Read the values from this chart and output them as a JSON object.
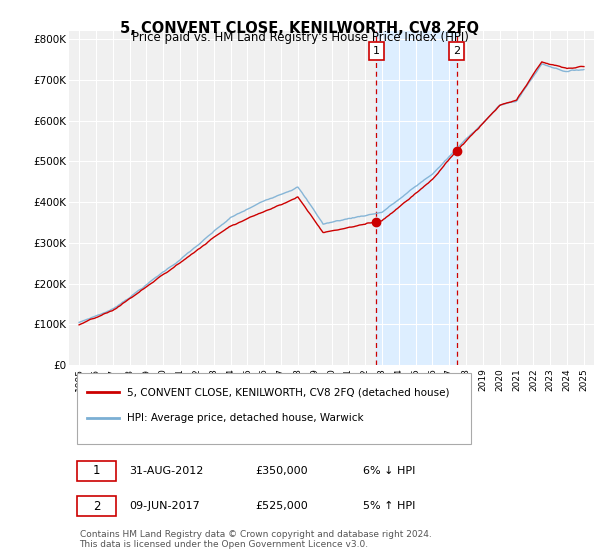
{
  "title": "5, CONVENT CLOSE, KENILWORTH, CV8 2FQ",
  "subtitle": "Price paid vs. HM Land Registry's House Price Index (HPI)",
  "legend_line1": "5, CONVENT CLOSE, KENILWORTH, CV8 2FQ (detached house)",
  "legend_line2": "HPI: Average price, detached house, Warwick",
  "annotation1_label": "1",
  "annotation1_date": "31-AUG-2012",
  "annotation1_price": "£350,000",
  "annotation1_hpi": "6% ↓ HPI",
  "annotation1_year": 2012.67,
  "annotation1_value": 350000,
  "annotation2_label": "2",
  "annotation2_date": "09-JUN-2017",
  "annotation2_price": "£525,000",
  "annotation2_hpi": "5% ↑ HPI",
  "annotation2_year": 2017.44,
  "annotation2_value": 525000,
  "footnote": "Contains HM Land Registry data © Crown copyright and database right 2024.\nThis data is licensed under the Open Government Licence v3.0.",
  "line_color_red": "#cc0000",
  "line_color_blue": "#7bafd4",
  "shade_color": "#ddeeff",
  "vline_color": "#cc0000",
  "box_border_color": "#cc0000",
  "box_face_color": "#ffffff",
  "box_text_color": "#000000",
  "ylim": [
    0,
    820000
  ],
  "yticks": [
    0,
    100000,
    200000,
    300000,
    400000,
    500000,
    600000,
    700000,
    800000
  ],
  "ytick_labels": [
    "£0",
    "£100K",
    "£200K",
    "£300K",
    "£400K",
    "£500K",
    "£600K",
    "£700K",
    "£800K"
  ],
  "background_color": "#ffffff",
  "plot_bg_color": "#f0f0f0",
  "grid_color": "#ffffff"
}
